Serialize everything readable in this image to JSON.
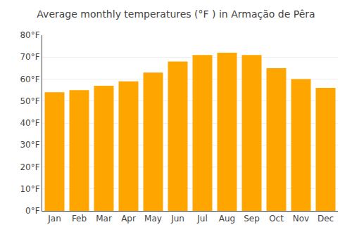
{
  "chart_data": {
    "type": "bar",
    "title": "Average monthly temperatures (°F ) in Armação de Pêra",
    "categories": [
      "Jan",
      "Feb",
      "Mar",
      "Apr",
      "May",
      "Jun",
      "Jul",
      "Aug",
      "Sep",
      "Oct",
      "Nov",
      "Dec"
    ],
    "values": [
      54,
      55,
      57,
      59,
      63,
      68,
      71,
      72,
      71,
      65,
      60,
      56
    ],
    "color": "#FFA500",
    "ylim": [
      0,
      80
    ],
    "yticks": [
      {
        "value": 0,
        "label": "0°F"
      },
      {
        "value": 10,
        "label": "10°F"
      },
      {
        "value": 20,
        "label": "20°F"
      },
      {
        "value": 30,
        "label": "30°F"
      },
      {
        "value": 40,
        "label": "40°F"
      },
      {
        "value": 50,
        "label": "50°F"
      },
      {
        "value": 60,
        "label": "60°F"
      },
      {
        "value": 70,
        "label": "70°F"
      },
      {
        "value": 80,
        "label": "80°F"
      }
    ],
    "grid": true
  }
}
